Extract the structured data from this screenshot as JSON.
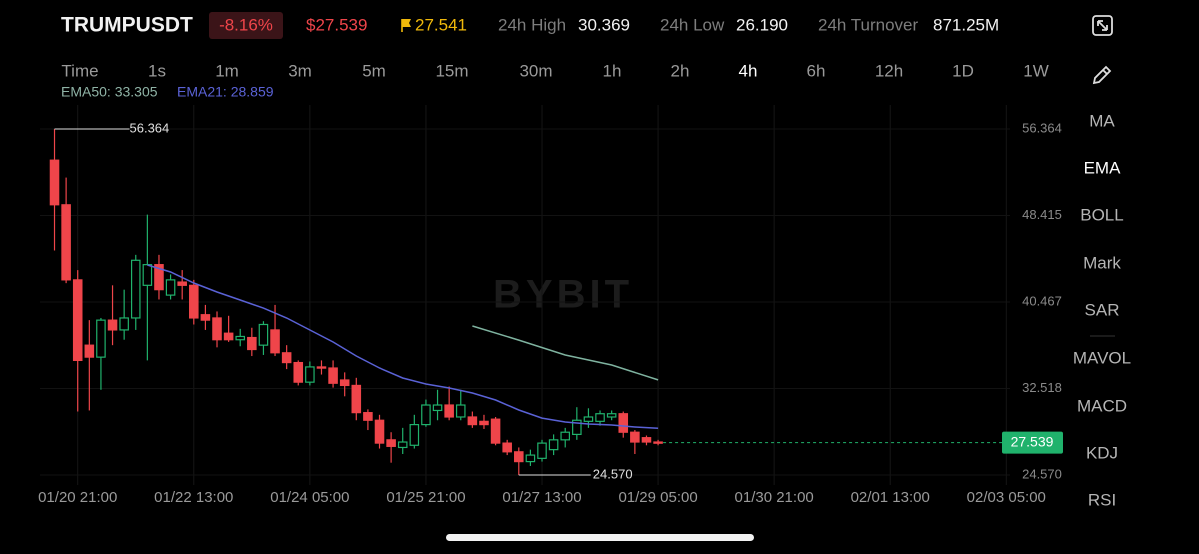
{
  "header": {
    "symbol": "TRUMPUSDT",
    "change": "-8.16%",
    "price": "$27.539",
    "mark_price": "27.541",
    "stats": [
      {
        "label": "24h High",
        "value": "30.369"
      },
      {
        "label": "24h Low",
        "value": "26.190"
      },
      {
        "label": "24h Turnover",
        "value": "871.25M"
      }
    ]
  },
  "timeframes": [
    "Time",
    "1s",
    "1m",
    "3m",
    "5m",
    "15m",
    "30m",
    "1h",
    "2h",
    "4h",
    "6h",
    "12h",
    "1D",
    "1W"
  ],
  "active_timeframe": "4h",
  "indicators": [
    "MA",
    "EMA",
    "BOLL",
    "Mark",
    "SAR",
    "MAVOL",
    "MACD",
    "KDJ",
    "RSI"
  ],
  "active_indicator": "EMA",
  "chart_data": {
    "type": "candlestick",
    "watermark": "BYBIT",
    "x": [
      "01/20 13:00",
      "01/20 17:00",
      "01/20 21:00",
      "01/21 01:00",
      "01/21 05:00",
      "01/21 09:00",
      "01/21 13:00",
      "01/21 17:00",
      "01/21 21:00",
      "01/22 01:00",
      "01/22 05:00",
      "01/22 09:00",
      "01/22 13:00",
      "01/22 17:00",
      "01/22 21:00",
      "01/23 01:00",
      "01/23 05:00",
      "01/23 09:00",
      "01/23 13:00",
      "01/23 17:00",
      "01/23 21:00",
      "01/24 01:00",
      "01/24 05:00",
      "01/24 09:00",
      "01/24 13:00",
      "01/24 17:00",
      "01/24 21:00",
      "01/25 01:00",
      "01/25 05:00",
      "01/25 09:00",
      "01/25 13:00",
      "01/25 17:00",
      "01/25 21:00",
      "01/26 01:00",
      "01/26 05:00",
      "01/26 09:00",
      "01/26 13:00",
      "01/26 17:00",
      "01/26 21:00",
      "01/27 01:00",
      "01/27 05:00",
      "01/27 09:00",
      "01/27 13:00",
      "01/27 17:00",
      "01/27 21:00",
      "01/28 01:00",
      "01/28 05:00",
      "01/28 09:00",
      "01/28 13:00",
      "01/28 17:00",
      "01/28 21:00",
      "01/29 01:00",
      "01/29 05:00"
    ],
    "open": [
      53.5,
      49.4,
      42.5,
      36.5,
      35.4,
      38.8,
      37.9,
      39.0,
      42.0,
      43.9,
      41.1,
      42.3,
      42.0,
      39.3,
      39.0,
      37.6,
      37.0,
      37.2,
      36.5,
      37.9,
      35.8,
      34.9,
      33.1,
      34.5,
      34.4,
      33.3,
      32.8,
      30.3,
      29.6,
      27.8,
      27.1,
      27.3,
      29.2,
      30.5,
      31.0,
      29.9,
      29.9,
      29.5,
      29.7,
      27.5,
      26.7,
      25.8,
      26.1,
      26.9,
      27.8,
      28.3,
      29.5,
      29.5,
      29.9,
      30.2,
      28.5,
      28.0,
      27.6
    ],
    "high": [
      56.364,
      51.9,
      43.4,
      38.8,
      39.0,
      42.0,
      41.6,
      44.8,
      48.5,
      44.8,
      43.0,
      43.4,
      42.5,
      40.2,
      39.6,
      39.2,
      38.0,
      38.1,
      38.7,
      40.2,
      36.5,
      35.1,
      35.0,
      35.1,
      35.1,
      34.0,
      33.5,
      30.6,
      30.1,
      28.5,
      28.9,
      30.1,
      31.5,
      32.4,
      32.7,
      32.4,
      30.4,
      30.1,
      29.9,
      27.8,
      27.1,
      26.9,
      27.8,
      28.3,
      28.9,
      30.8,
      30.7,
      30.5,
      30.5,
      30.4,
      28.7,
      28.2,
      27.8
    ],
    "low": [
      45.2,
      42.2,
      30.4,
      30.5,
      32.4,
      36.5,
      37.0,
      37.9,
      35.1,
      40.7,
      40.7,
      40.7,
      38.4,
      37.9,
      36.3,
      36.8,
      36.4,
      35.5,
      35.6,
      35.5,
      34.3,
      32.8,
      32.8,
      33.8,
      32.6,
      31.8,
      29.6,
      28.7,
      27.0,
      25.7,
      26.5,
      27.0,
      29.0,
      29.6,
      29.6,
      29.6,
      28.9,
      28.8,
      27.3,
      26.4,
      24.57,
      25.4,
      25.8,
      26.4,
      27.1,
      27.8,
      28.9,
      29.1,
      29.6,
      28.0,
      26.5,
      27.3,
      27.3
    ],
    "close": [
      49.4,
      42.5,
      35.1,
      35.4,
      38.8,
      37.9,
      39.0,
      44.3,
      43.9,
      41.6,
      42.5,
      42.0,
      39.0,
      38.8,
      37.0,
      37.0,
      37.3,
      36.1,
      38.4,
      35.8,
      34.9,
      33.1,
      34.5,
      34.4,
      33.0,
      32.8,
      30.3,
      29.6,
      27.5,
      27.2,
      27.6,
      29.2,
      31.0,
      31.0,
      29.9,
      31.0,
      29.2,
      29.2,
      27.5,
      26.7,
      25.8,
      26.4,
      27.5,
      27.8,
      28.5,
      29.6,
      29.9,
      30.2,
      30.2,
      28.5,
      27.6,
      27.6,
      27.539
    ],
    "up_color": "#20b26c",
    "down_color": "#ef454a",
    "series": [
      {
        "name": "EMA50",
        "legend": "EMA50: 33.305",
        "color": "#7fb3a0",
        "x": [
          "01/26 13:00",
          "01/27 05:00",
          "01/27 21:00",
          "01/28 13:00",
          "01/29 05:00"
        ],
        "values": [
          38.26,
          36.97,
          35.6,
          34.68,
          33.305
        ]
      },
      {
        "name": "EMA21",
        "legend": "EMA21: 28.859",
        "color": "#5a62d6",
        "x": [
          "01/21 21:00",
          "01/22 05:00",
          "01/22 13:00",
          "01/22 21:00",
          "01/23 05:00",
          "01/23 13:00",
          "01/23 21:00",
          "01/24 05:00",
          "01/24 13:00",
          "01/24 21:00",
          "01/25 05:00",
          "01/25 13:00",
          "01/25 21:00",
          "01/26 05:00",
          "01/26 13:00",
          "01/26 21:00",
          "01/27 05:00",
          "01/27 13:00",
          "01/27 21:00",
          "01/28 05:00",
          "01/28 13:00",
          "01/28 21:00",
          "01/29 05:00"
        ],
        "values": [
          43.87,
          43.22,
          42.21,
          41.39,
          40.65,
          39.91,
          39.0,
          37.89,
          36.79,
          35.5,
          34.4,
          33.48,
          32.93,
          32.56,
          32.1,
          31.46,
          30.54,
          29.8,
          29.44,
          29.26,
          29.16,
          28.98,
          28.859
        ]
      }
    ],
    "high_marker": 56.364,
    "low_marker": {
      "value": 24.57,
      "label": "24.570"
    },
    "last_price": 27.539,
    "xlim": [
      "01/20 08:00",
      "02/03 08:00"
    ],
    "xticks": [
      "01/20 21:00",
      "01/22 13:00",
      "01/24 05:00",
      "01/25 21:00",
      "01/27 13:00",
      "01/29 05:00",
      "01/30 21:00",
      "02/01 13:00",
      "02/03 05:00"
    ],
    "ylim": [
      23.65,
      58.57
    ],
    "yticks": [
      {
        "value": 24.57,
        "label": "24.570"
      },
      32.518,
      40.467,
      48.415,
      56.364
    ],
    "grid": true
  }
}
